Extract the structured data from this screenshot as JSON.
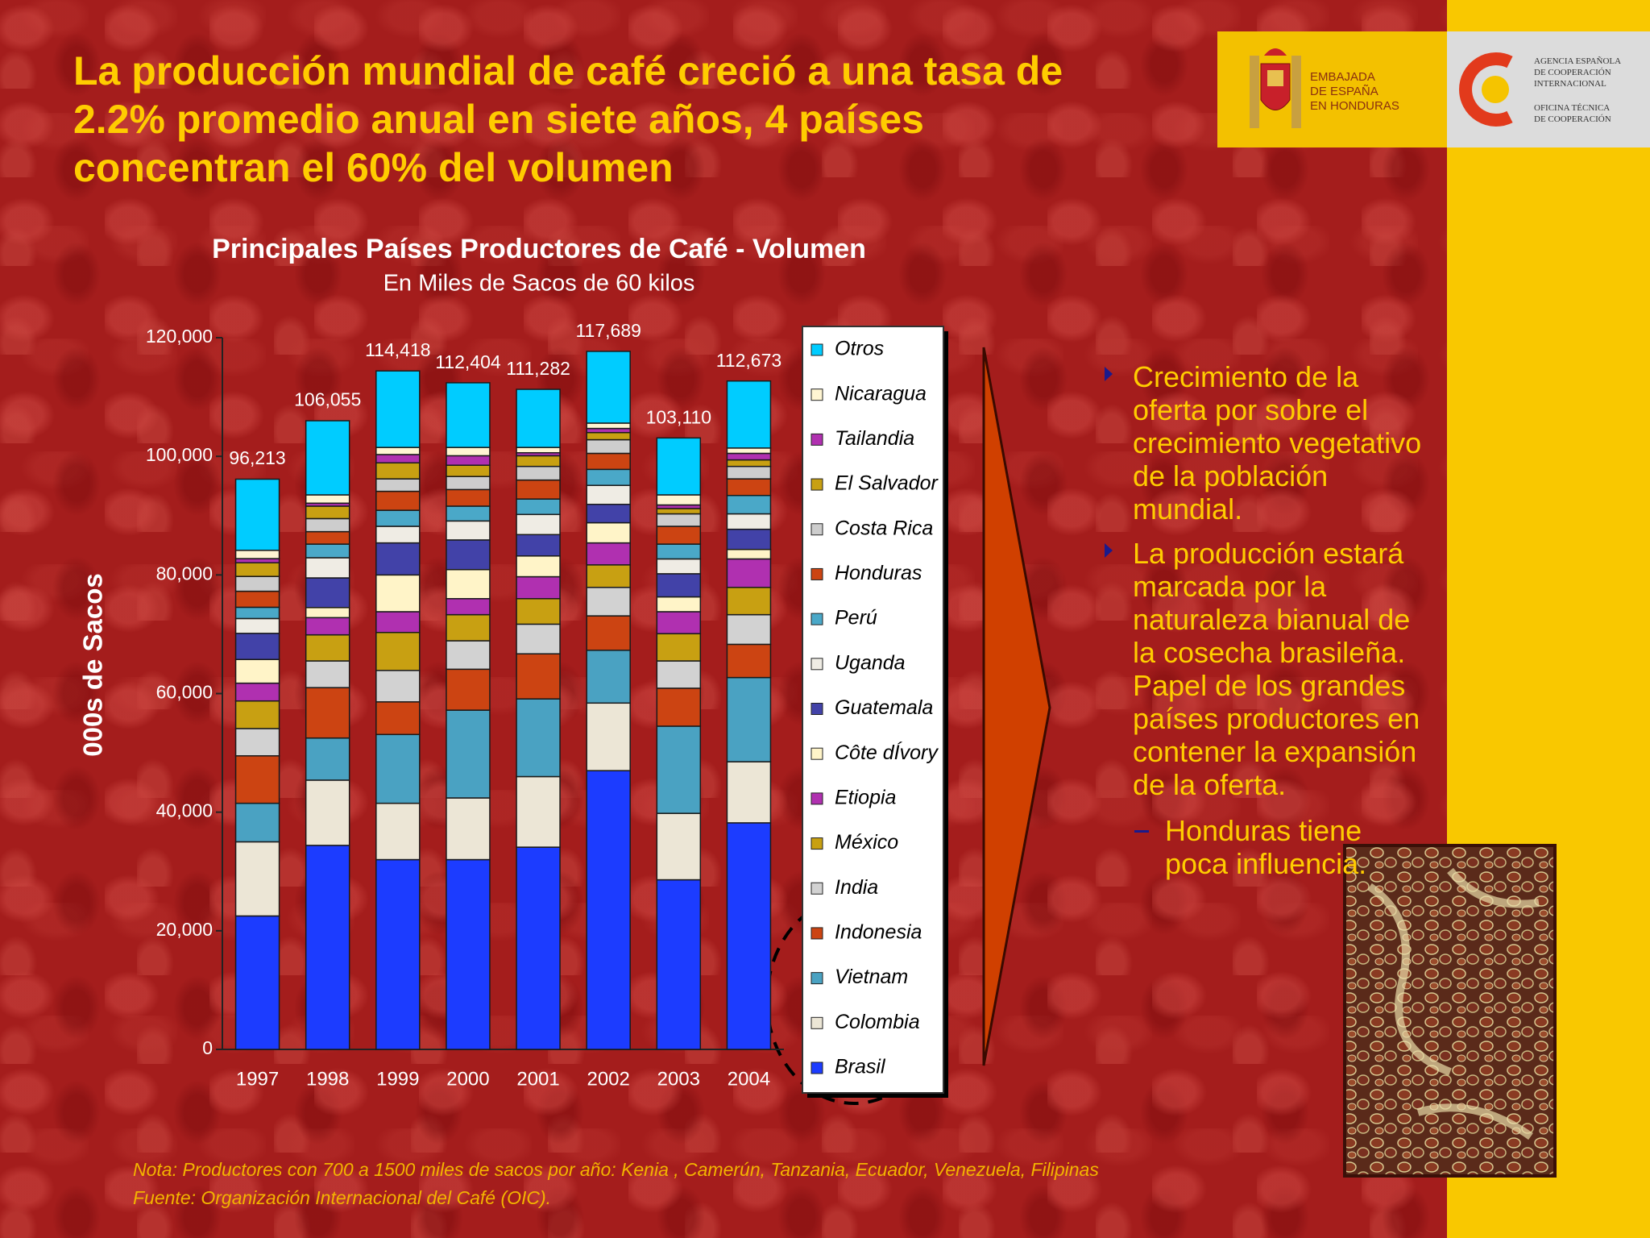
{
  "slide": {
    "title_lines": [
      "La producción mundial de café creció a una tasa de",
      "2.2% promedio anual en siete años, 4 países",
      "concentran el 60% del volumen"
    ],
    "logos": {
      "embassy": "Embajada\nde España\nen Honduras",
      "agency": "Agencia Española\nde Cooperación\nInternacional",
      "office": "Oficina Técnica\nde Cooperación"
    },
    "bullets": [
      "Crecimiento de la oferta por sobre el crecimiento vegetativo de la población mundial.",
      "La producción estará marcada por la naturaleza bianual de la cosecha brasileña. Papel de los grandes países productores en contener la expansión de la oferta."
    ],
    "sub_bullet": "Honduras tiene poca influencia.",
    "note": "Nota: Productores con 700 a 1500 miles de sacos por año: Kenia , Camerún, Tanzania, Ecuador, Venezuela, Filipinas",
    "source": "Fuente: Organización Internacional del Café (OIC)."
  },
  "chart_data": {
    "type": "stacked_bar",
    "title": "Principales Países Productores de Café  - Volumen",
    "subtitle": "En Miles de Sacos de 60 kilos",
    "y_label": "000s de Sacos",
    "categories": [
      "1997",
      "1998",
      "1999",
      "2000",
      "2001",
      "2002",
      "2003",
      "2004"
    ],
    "series": [
      {
        "name": "Brasil",
        "color": "#1c3cff",
        "values": [
          22500,
          34400,
          32000,
          32000,
          34100,
          47000,
          28600,
          38200
        ]
      },
      {
        "name": "Colombia",
        "color": "#ece6d6",
        "values": [
          12500,
          11000,
          9500,
          10400,
          11900,
          11400,
          11200,
          10300
        ]
      },
      {
        "name": "Vietnam",
        "color": "#4aa2c2",
        "values": [
          6500,
          7100,
          11600,
          14800,
          13100,
          8900,
          14700,
          14200
        ]
      },
      {
        "name": "Indonesia",
        "color": "#cc4412",
        "values": [
          8000,
          8500,
          5500,
          6900,
          7600,
          5800,
          6400,
          5600
        ]
      },
      {
        "name": "India",
        "color": "#d2d2d2",
        "values": [
          4600,
          4500,
          5300,
          4800,
          5000,
          4800,
          4600,
          5000
        ]
      },
      {
        "name": "México",
        "color": "#c8a012",
        "values": [
          4650,
          4400,
          6400,
          4400,
          4300,
          3800,
          4600,
          4600
        ]
      },
      {
        "name": "Etiopia",
        "color": "#b030b0",
        "values": [
          3000,
          2900,
          3500,
          2700,
          3700,
          3700,
          3700,
          4800
        ]
      },
      {
        "name": "Côte dÍvory",
        "color": "#fff4c8",
        "values": [
          4000,
          1700,
          6200,
          4900,
          3500,
          3400,
          2500,
          1600
        ]
      },
      {
        "name": "Guatemala",
        "color": "#4242a8",
        "values": [
          4400,
          5000,
          5400,
          5000,
          3600,
          3100,
          3900,
          3400
        ]
      },
      {
        "name": "Uganda",
        "color": "#efece4",
        "values": [
          2500,
          3400,
          2800,
          3200,
          3400,
          3200,
          2500,
          2600
        ]
      },
      {
        "name": "Perú",
        "color": "#4aa8c8",
        "values": [
          1900,
          2300,
          2700,
          2500,
          2600,
          2700,
          2500,
          3100
        ]
      },
      {
        "name": "Honduras",
        "color": "#cc4412",
        "values": [
          2700,
          2100,
          3200,
          2800,
          3200,
          2700,
          3000,
          2800
        ]
      },
      {
        "name": "Costa Rica",
        "color": "#cdcdcd",
        "values": [
          2500,
          2200,
          2100,
          2200,
          2300,
          2300,
          2100,
          2100
        ]
      },
      {
        "name": "El Salvador",
        "color": "#c8a012",
        "values": [
          2300,
          2100,
          2700,
          1900,
          1800,
          1200,
          900,
          1100
        ]
      },
      {
        "name": "Tailandia",
        "color": "#b030b0",
        "values": [
          700,
          500,
          1400,
          1600,
          500,
          700,
          600,
          1100
        ]
      },
      {
        "name": "Nicaragua",
        "color": "#fff5d2",
        "values": [
          1400,
          1400,
          1200,
          1400,
          900,
          900,
          1700,
          900
        ]
      },
      {
        "name": "Otros",
        "color": "#00ccff",
        "values": [
          12000,
          12500,
          12900,
          10900,
          9800,
          12100,
          9600,
          11300
        ]
      }
    ],
    "totals": [
      96213,
      106055,
      114418,
      112404,
      111282,
      117689,
      103110,
      112673
    ],
    "total_labels": [
      "96,213",
      "106,055",
      "114,418",
      "112,404",
      "111,282",
      "117,689",
      "103,110",
      "112,673"
    ],
    "ylim": [
      0,
      120000
    ],
    "yticks": [
      0,
      {
        "value": 20000,
        "label": "20,000"
      },
      {
        "value": 40000,
        "label": "40,000"
      },
      {
        "value": 60000,
        "label": "60,000"
      },
      {
        "value": 80000,
        "label": "80,000"
      },
      {
        "value": 100000,
        "label": "100,000"
      },
      {
        "value": 120000,
        "label": "120,000"
      }
    ],
    "grid": false,
    "legend": "right"
  }
}
